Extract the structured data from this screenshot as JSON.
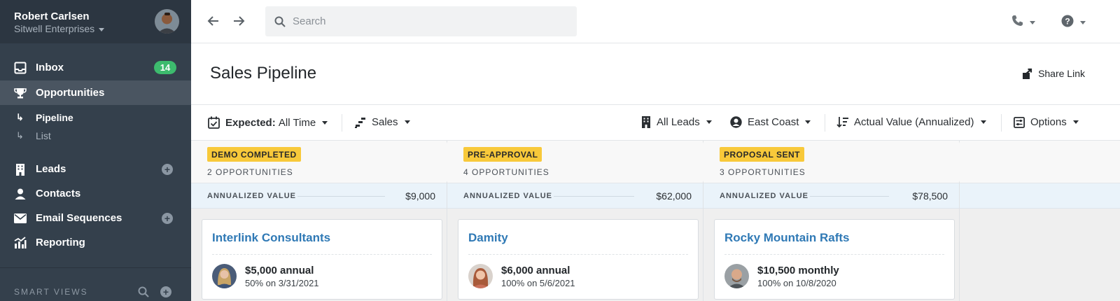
{
  "account": {
    "user_name": "Robert Carlsen",
    "org_name": "Sitwell Enterprises"
  },
  "sidebar": {
    "items": [
      {
        "label": "Inbox",
        "icon": "inbox-icon",
        "badge": "14"
      },
      {
        "label": "Opportunities",
        "icon": "trophy-icon",
        "active": true
      },
      {
        "label": "Leads",
        "icon": "building-icon"
      },
      {
        "label": "Contacts",
        "icon": "person-icon"
      },
      {
        "label": "Email Sequences",
        "icon": "envelope-icon"
      },
      {
        "label": "Reporting",
        "icon": "chart-icon"
      }
    ],
    "subitems": [
      {
        "label": "Pipeline",
        "selected": true
      },
      {
        "label": "List",
        "selected": false
      }
    ],
    "smart_views_label": "SMART VIEWS"
  },
  "topbar": {
    "search_placeholder": "Search"
  },
  "page": {
    "title": "Sales Pipeline",
    "share_label": "Share Link"
  },
  "filters": {
    "expected_prefix": "Expected:",
    "expected_value": "All Time",
    "pipeline": "Sales",
    "leads": "All Leads",
    "region": "East Coast",
    "sort": "Actual Value (Annualized)",
    "options": "Options"
  },
  "columns": [
    {
      "stage": "DEMO COMPLETED",
      "count": "2 OPPORTUNITIES",
      "value_label": "ANNUALIZED VALUE",
      "value": "$9,000",
      "card": {
        "title": "Interlink Consultants",
        "amount": "$5,000 annual",
        "sub": "50% on 3/31/2021"
      }
    },
    {
      "stage": "PRE-APPROVAL",
      "count": "4 OPPORTUNITIES",
      "value_label": "ANNUALIZED VALUE",
      "value": "$62,000",
      "card": {
        "title": "Damity",
        "amount": "$6,000 annual",
        "sub": "100% on 5/6/2021"
      }
    },
    {
      "stage": "PROPOSAL SENT",
      "count": "3 OPPORTUNITIES",
      "value_label": "ANNUALIZED VALUE",
      "value": "$78,500",
      "card": {
        "title": "Rocky Mountain Rafts",
        "amount": "$10,500 monthly",
        "sub": "100% on 10/8/2020"
      }
    }
  ],
  "colors": {
    "sidebar_bg": "#34404c",
    "badge_green": "#3dbb6e",
    "stage_yellow": "#f8c93a",
    "link_blue": "#2f79b5",
    "value_row_bg": "#eaf3fa"
  }
}
